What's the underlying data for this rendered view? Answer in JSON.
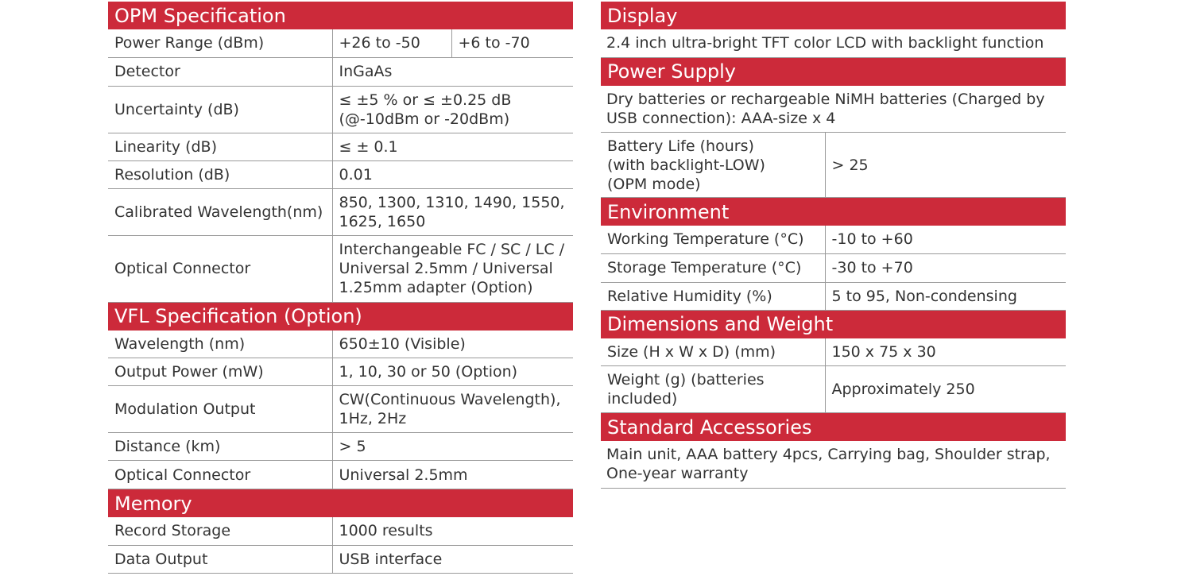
{
  "opm": {
    "title": "OPM Specification",
    "power_range_label": "Power Range (dBm)",
    "power_range_v1": "+26 to -50",
    "power_range_v2": "+6 to -70",
    "detector_label": "Detector",
    "detector": "InGaAs",
    "uncertainty_label": "Uncertainty (dB)",
    "uncertainty": "≤ ±5 % or ≤ ±0.25 dB (@-10dBm or -20dBm)",
    "linearity_label": "Linearity (dB)",
    "linearity": "≤ ± 0.1",
    "resolution_label": "Resolution (dB)",
    "resolution": "0.01",
    "wavelength_label": "Calibrated Wavelength(nm)",
    "wavelength": "850, 1300, 1310, 1490, 1550, 1625, 1650",
    "connector_label": "Optical Connector",
    "connector": "Interchangeable FC / SC / LC / Universal 2.5mm / Universal 1.25mm adapter (Option)"
  },
  "vfl": {
    "title": "VFL Specification (Option)",
    "wavelength_label": "Wavelength (nm)",
    "wavelength": "650±10 (Visible)",
    "output_power_label": "Output Power (mW)",
    "output_power": "1, 10, 30 or 50 (Option)",
    "modulation_label": "Modulation Output",
    "modulation": "CW(Continuous Wavelength), 1Hz, 2Hz",
    "distance_label": "Distance (km)",
    "distance": "> 5",
    "connector_label": "Optical Connector",
    "connector": "Universal 2.5mm"
  },
  "memory": {
    "title": "Memory",
    "storage_label": "Record Storage",
    "storage": "1000 results",
    "output_label": "Data Output",
    "output": "USB interface"
  },
  "display": {
    "title": "Display",
    "text": "2.4 inch ultra-bright TFT color LCD with backlight function"
  },
  "power": {
    "title": "Power Supply",
    "text": "Dry batteries or rechargeable NiMH batteries (Charged by USB connection): AAA-size x 4",
    "battery_label_l1": "Battery Life (hours)",
    "battery_label_l2": "(with backlight-LOW)",
    "battery_label_l3": "(OPM mode)",
    "battery": "> 25"
  },
  "environment": {
    "title": "Environment",
    "working_label": "Working Temperature (°C)",
    "working": "-10 to +60",
    "storage_label": "Storage Temperature (°C)",
    "storage": "-30 to +70",
    "humidity_label": "Relative Humidity (%)",
    "humidity": "5 to 95, Non-condensing"
  },
  "dimensions": {
    "title": "Dimensions and Weight",
    "size_label": "Size (H x W x D) (mm)",
    "size": "150 x 75 x 30",
    "weight_label": "Weight (g) (batteries included)",
    "weight": "Approximately 250"
  },
  "accessories": {
    "title": "Standard Accessories",
    "text": "Main unit, AAA battery 4pcs, Carrying bag, Shoulder strap, One-year warranty"
  }
}
